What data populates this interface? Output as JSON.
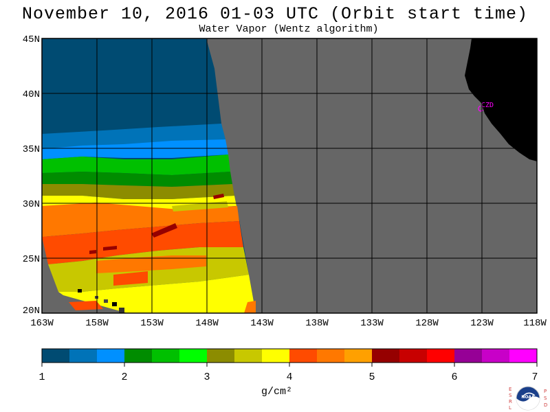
{
  "title": "November 10, 2016  01-03 UTC  (Orbit start time)",
  "subtitle": "Water Vapor (Wentz algorithm)",
  "map": {
    "lat_labels": [
      "45N",
      "40N",
      "35N",
      "30N",
      "25N",
      "20N"
    ],
    "lon_labels": [
      "163W",
      "158W",
      "153W",
      "148W",
      "143W",
      "138W",
      "133W",
      "128W",
      "123W",
      "118W"
    ],
    "lat_range": [
      20,
      45
    ],
    "lon_range": [
      -163,
      -118
    ],
    "station_label": "CZD",
    "colors": {
      "no_data": "#666666",
      "land": "#000000",
      "grid": "#000000",
      "station": "#ff00ff"
    }
  },
  "colorbar": {
    "tick_labels": [
      "1",
      "2",
      "3",
      "4",
      "5",
      "6",
      "7"
    ],
    "units": "g/cm²",
    "min": 1,
    "max": 7,
    "colors": [
      "#004b72",
      "#0073b8",
      "#0090ff",
      "#008c00",
      "#00c000",
      "#00ff00",
      "#8c8c00",
      "#c8c800",
      "#ffff00",
      "#ff4b00",
      "#ff7800",
      "#ffa000",
      "#960000",
      "#c80000",
      "#ff0000",
      "#960096",
      "#c800c8",
      "#ff00ff"
    ]
  },
  "logo": {
    "left_letters": [
      "E",
      "S",
      "R",
      "L"
    ],
    "right_letters": [
      "P",
      "S",
      "D"
    ],
    "center_text": "NOAA"
  }
}
